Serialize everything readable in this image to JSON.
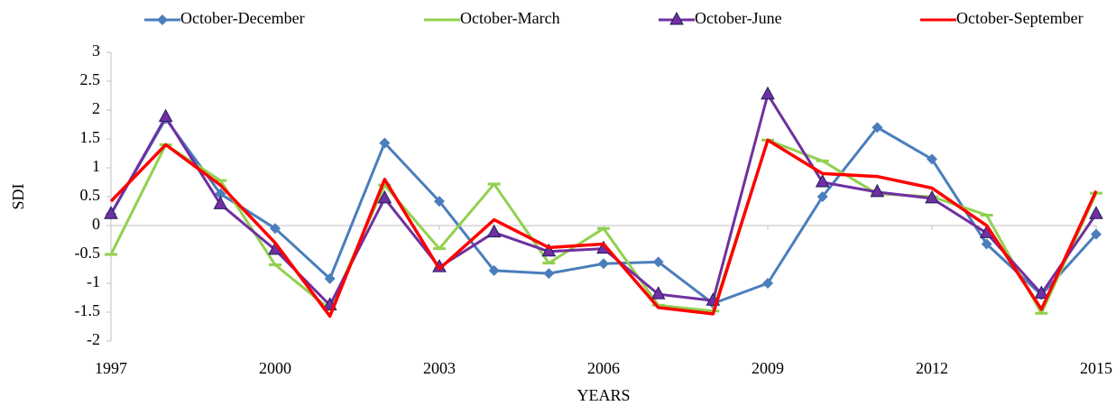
{
  "chart_data": {
    "type": "line",
    "x": [
      1997,
      1998,
      1999,
      2000,
      2001,
      2002,
      2003,
      2004,
      2005,
      2006,
      2007,
      2008,
      2009,
      2010,
      2011,
      2012,
      2013,
      2014,
      2015
    ],
    "xlim": [
      1997,
      2015
    ],
    "xticks": [
      1997,
      2000,
      2003,
      2006,
      2009,
      2012,
      2015
    ],
    "ylim": [
      -2,
      3
    ],
    "yticks": [
      3,
      2.5,
      2,
      1.5,
      1,
      0.5,
      0,
      -0.5,
      -1,
      -1.5,
      -2
    ],
    "x_label": "YEARS",
    "y_label": "SDI",
    "grid": false,
    "legend": "top",
    "series": [
      {
        "name": "October-December",
        "color": "#4a7ebb",
        "marker": "diamond",
        "values": [
          0.2,
          1.85,
          0.55,
          -0.05,
          -0.92,
          1.43,
          0.42,
          -0.78,
          -0.83,
          -0.66,
          -0.63,
          -1.35,
          -1.0,
          0.5,
          1.7,
          1.15,
          -0.32,
          -1.2,
          -0.15
        ]
      },
      {
        "name": "October-March",
        "color": "#92d050",
        "marker": "dash",
        "values": [
          -0.5,
          1.4,
          0.78,
          -0.68,
          -1.45,
          0.7,
          -0.4,
          0.72,
          -0.65,
          -0.05,
          -1.38,
          -1.48,
          1.48,
          1.12,
          0.55,
          0.5,
          0.18,
          -1.52,
          0.56
        ]
      },
      {
        "name": "October-June",
        "color": "#7030a0",
        "marker": "triangle",
        "values": [
          0.2,
          1.88,
          0.37,
          -0.42,
          -1.38,
          0.47,
          -0.72,
          -0.12,
          -0.45,
          -0.4,
          -1.19,
          -1.3,
          2.27,
          0.75,
          0.58,
          0.47,
          -0.13,
          -1.18,
          0.2
        ]
      },
      {
        "name": "October-September",
        "color": "#ff0000",
        "marker": "none",
        "values": [
          0.42,
          1.4,
          0.7,
          -0.3,
          -1.57,
          0.8,
          -0.75,
          0.1,
          -0.38,
          -0.32,
          -1.42,
          -1.53,
          1.48,
          0.9,
          0.85,
          0.65,
          0.0,
          -1.45,
          0.6
        ]
      }
    ]
  }
}
